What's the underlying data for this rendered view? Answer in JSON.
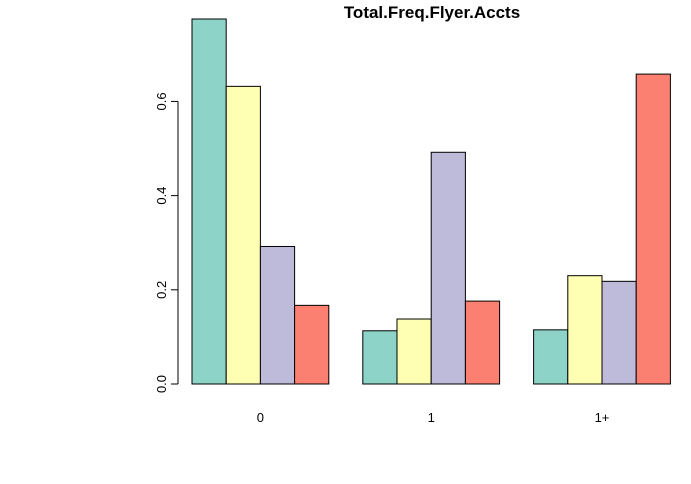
{
  "chart_data": {
    "type": "bar",
    "title": "Total.Freq.Flyer.Accts",
    "xlabel": "",
    "ylabel": "",
    "categories": [
      "0",
      "1",
      "1+"
    ],
    "series": [
      {
        "color": "#8DD3C7",
        "values": [
          0.775,
          0.113,
          0.115
        ]
      },
      {
        "color": "#FFFFB3",
        "values": [
          0.632,
          0.138,
          0.23
        ]
      },
      {
        "color": "#BEBADA",
        "values": [
          0.292,
          0.492,
          0.218
        ]
      },
      {
        "color": "#FB8072",
        "values": [
          0.167,
          0.176,
          0.658
        ]
      }
    ],
    "ylim": [
      0,
      0.775
    ],
    "yticks": [
      0.0,
      0.2,
      0.4,
      0.6
    ],
    "ytick_labels": [
      "0.0",
      "0.2",
      "0.4",
      "0.6"
    ],
    "grid": false,
    "legend": "none"
  }
}
